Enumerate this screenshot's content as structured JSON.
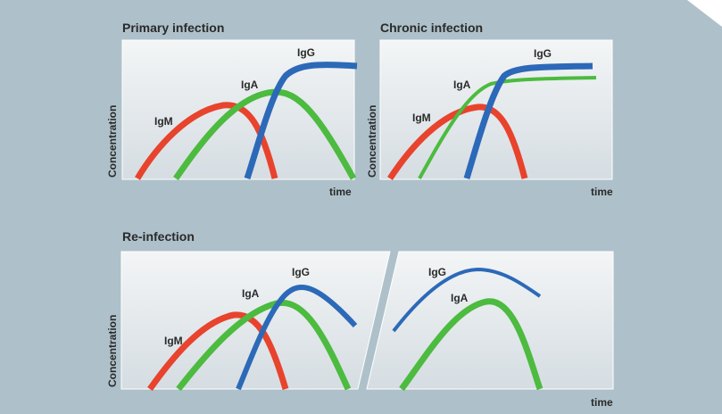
{
  "panels": {
    "primary": {
      "title": "Primary infection",
      "ylabel": "Concentration",
      "xlabel": "time",
      "curves": {
        "igm": "IgM",
        "iga": "IgA",
        "igg": "IgG"
      }
    },
    "chronic": {
      "title": "Chronic infection",
      "ylabel": "Concentration",
      "xlabel": "time",
      "curves": {
        "igm": "IgM",
        "iga": "IgA",
        "igg": "IgG"
      }
    },
    "reinfection": {
      "title": "Re-infection",
      "ylabel": "Concentration",
      "xlabel": "time",
      "curves": {
        "igm": "IgM",
        "iga": "IgA",
        "igg": "IgG"
      },
      "right_curves": {
        "iga": "IgA",
        "igg": "IgG"
      }
    }
  },
  "colors": {
    "background": "#aec1ca",
    "plot_top": "#f3f5f6",
    "plot_bottom": "#d5dde2",
    "igm": "#e8432d",
    "iga": "#4cbb3f",
    "igg": "#2c69b8",
    "text": "#2a2a2a"
  }
}
